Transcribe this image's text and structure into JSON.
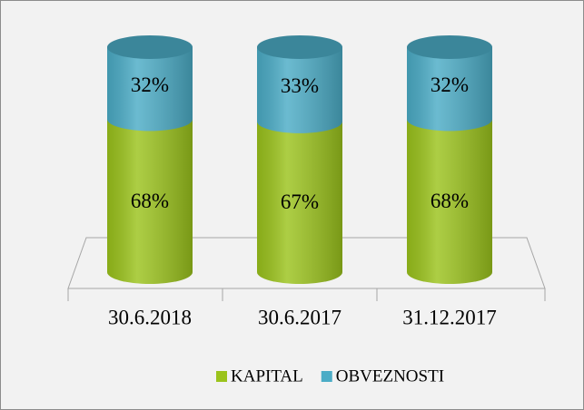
{
  "chart_data": {
    "type": "stacked-cylinder",
    "categories": [
      "30.6.2018",
      "30.6.2017",
      "31.12.2017"
    ],
    "series": [
      {
        "name": "KAPITAL",
        "color": "#9bc31c",
        "values": [
          68,
          67,
          68
        ],
        "value_labels": [
          "68%",
          "67%",
          "68%"
        ]
      },
      {
        "name": "OBVEZNOSTI",
        "color": "#4bacc6",
        "values": [
          32,
          33,
          32
        ],
        "value_labels": [
          "32%",
          "33%",
          "32%"
        ]
      }
    ],
    "ylim": [
      0,
      100
    ],
    "legend": "bottom"
  }
}
